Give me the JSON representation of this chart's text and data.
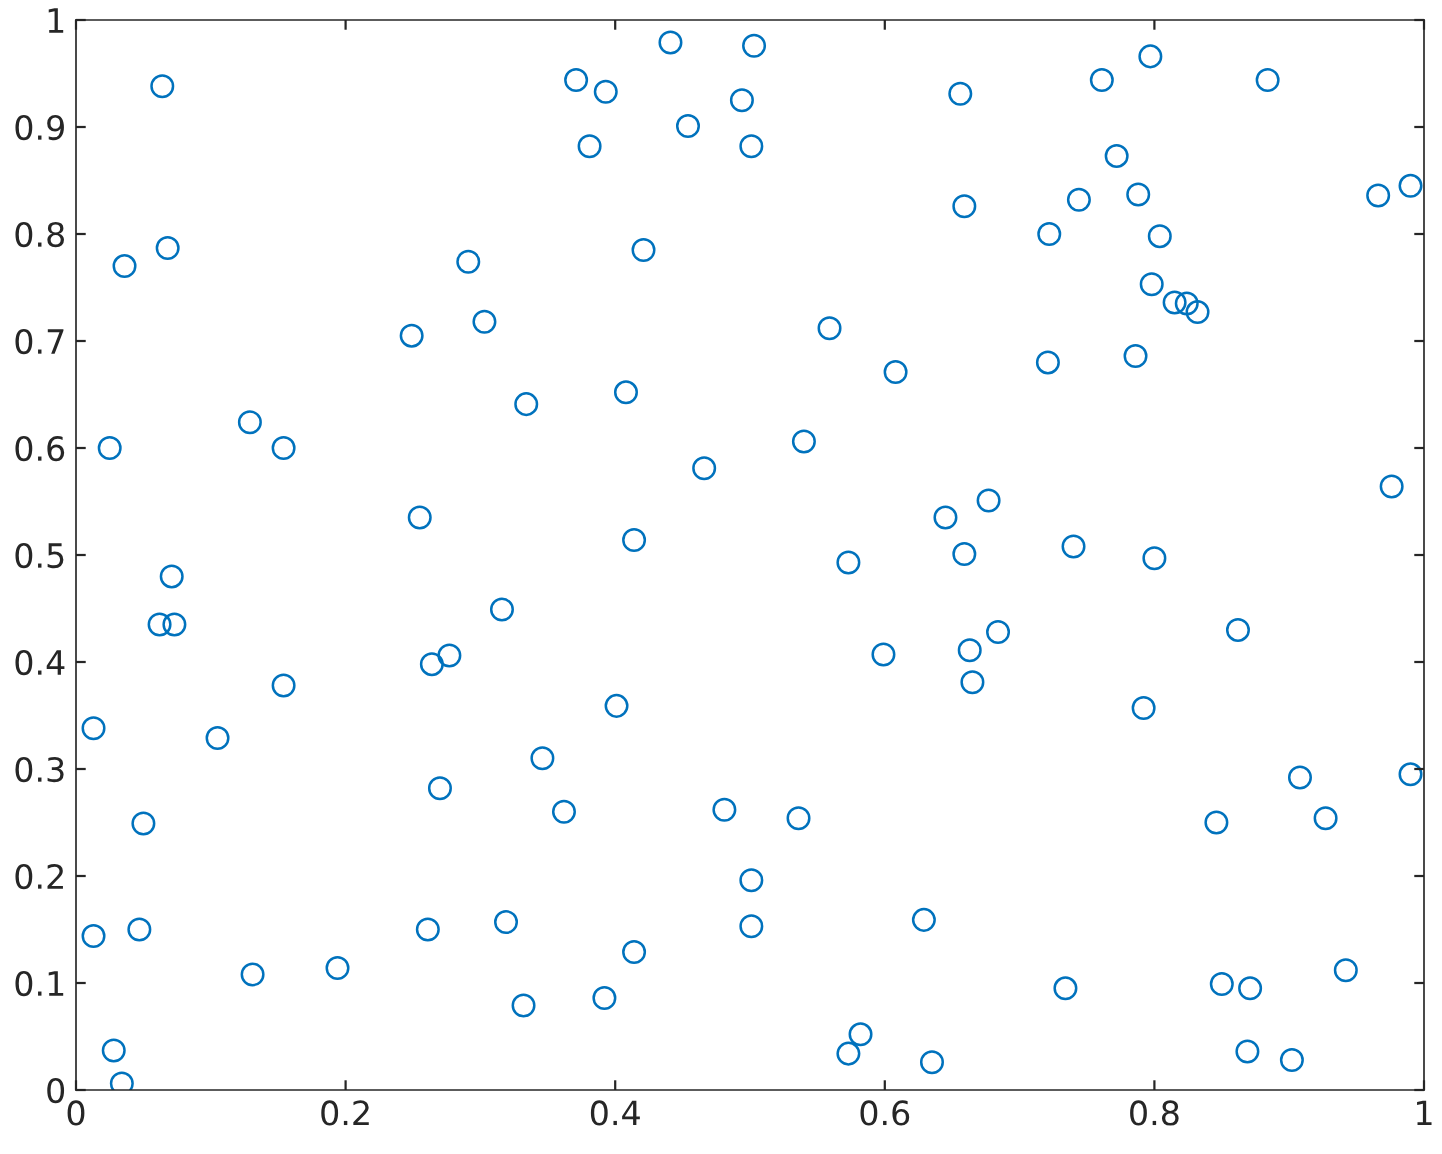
{
  "chart_data": {
    "type": "scatter",
    "marker": "circle",
    "grid": false,
    "legend": false,
    "xlim": [
      0,
      1
    ],
    "ylim": [
      0,
      1
    ],
    "xticks": [
      0,
      0.2,
      0.4,
      0.6,
      0.8,
      1
    ],
    "yticks": [
      0,
      0.1,
      0.2,
      0.3,
      0.4,
      0.5,
      0.6,
      0.7,
      0.8,
      0.9,
      1
    ],
    "series": [
      {
        "color": "#0072bd",
        "x": [
          0.064,
          0.036,
          0.068,
          0.025,
          0.129,
          0.154,
          0.071,
          0.062,
          0.073,
          0.013,
          0.105,
          0.154,
          0.05,
          0.013,
          0.047,
          0.028,
          0.034,
          0.131,
          0.194,
          0.249,
          0.291,
          0.303,
          0.255,
          0.334,
          0.264,
          0.277,
          0.316,
          0.27,
          0.346,
          0.362,
          0.261,
          0.319,
          0.332,
          0.371,
          0.393,
          0.381,
          0.441,
          0.454,
          0.494,
          0.503,
          0.501,
          0.421,
          0.408,
          0.414,
          0.466,
          0.401,
          0.481,
          0.501,
          0.501,
          0.392,
          0.414,
          0.536,
          0.54,
          0.559,
          0.608,
          0.573,
          0.599,
          0.645,
          0.659,
          0.677,
          0.663,
          0.684,
          0.665,
          0.629,
          0.573,
          0.582,
          0.635,
          0.656,
          0.659,
          0.761,
          0.797,
          0.772,
          0.744,
          0.722,
          0.788,
          0.804,
          0.798,
          0.815,
          0.824,
          0.832,
          0.786,
          0.721,
          0.74,
          0.8,
          0.792,
          0.862,
          0.884,
          0.966,
          0.99,
          0.976,
          0.908,
          0.99,
          0.846,
          0.927,
          0.85,
          0.871,
          0.734,
          0.942,
          0.869,
          0.902
        ],
        "values": [
          0.938,
          0.77,
          0.787,
          0.6,
          0.624,
          0.6,
          0.48,
          0.435,
          0.435,
          0.338,
          0.329,
          0.378,
          0.249,
          0.144,
          0.15,
          0.037,
          0.006,
          0.108,
          0.114,
          0.705,
          0.774,
          0.718,
          0.535,
          0.641,
          0.398,
          0.406,
          0.449,
          0.282,
          0.31,
          0.26,
          0.15,
          0.157,
          0.079,
          0.944,
          0.933,
          0.882,
          0.979,
          0.901,
          0.925,
          0.976,
          0.882,
          0.785,
          0.652,
          0.514,
          0.581,
          0.359,
          0.262,
          0.196,
          0.153,
          0.086,
          0.129,
          0.254,
          0.606,
          0.712,
          0.671,
          0.493,
          0.407,
          0.535,
          0.501,
          0.551,
          0.411,
          0.428,
          0.381,
          0.159,
          0.034,
          0.052,
          0.026,
          0.931,
          0.826,
          0.944,
          0.966,
          0.873,
          0.832,
          0.8,
          0.837,
          0.798,
          0.753,
          0.736,
          0.735,
          0.727,
          0.686,
          0.68,
          0.508,
          0.497,
          0.357,
          0.43,
          0.944,
          0.836,
          0.845,
          0.564,
          0.292,
          0.295,
          0.25,
          0.254,
          0.099,
          0.095,
          0.095,
          0.112,
          0.036,
          0.028
        ]
      }
    ]
  }
}
